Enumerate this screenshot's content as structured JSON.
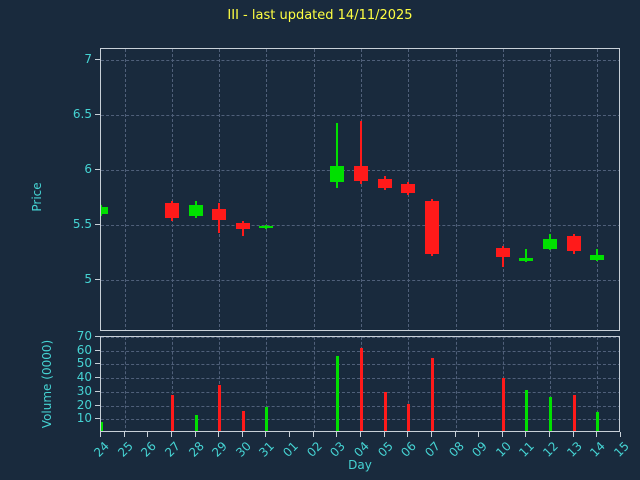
{
  "colors": {
    "background": "#192a3d",
    "up": "#00e000",
    "down": "#ff1a1a",
    "grid": "#50607a",
    "frame": "#c8d0d8",
    "tick_text": "#45d3d3",
    "title_text": "#ffff42"
  },
  "chart_data": {
    "type": "candlestick",
    "title": "III - last updated 14/11/2025",
    "xlabel": "Day",
    "price_axis": {
      "label": "Price",
      "ticks": [
        7,
        6.5,
        6,
        5.5,
        5
      ],
      "range": [
        4.53,
        7.1
      ],
      "grid": true
    },
    "volume_axis": {
      "label": "Volume (0000)",
      "ticks": [
        70,
        60,
        50,
        40,
        30,
        20,
        10
      ],
      "range": [
        0,
        70
      ],
      "grid": true
    },
    "days": [
      "24",
      "25",
      "26",
      "27",
      "28",
      "29",
      "30",
      "31",
      "01",
      "02",
      "03",
      "04",
      "05",
      "06",
      "07",
      "08",
      "09",
      "10",
      "11",
      "12",
      "13",
      "14",
      "15"
    ],
    "candles": [
      {
        "day": "24",
        "open": 5.6,
        "close": 5.66,
        "high": 5.68,
        "low": 5.58,
        "color": "up",
        "volume": 8
      },
      {
        "day": "27",
        "open": 5.7,
        "close": 5.56,
        "high": 5.72,
        "low": 5.54,
        "color": "down",
        "volume": 28
      },
      {
        "day": "28",
        "open": 5.58,
        "close": 5.68,
        "high": 5.72,
        "low": 5.56,
        "color": "up",
        "volume": 13
      },
      {
        "day": "29",
        "open": 5.65,
        "close": 5.55,
        "high": 5.7,
        "low": 5.43,
        "color": "down",
        "volume": 35
      },
      {
        "day": "30",
        "open": 5.52,
        "close": 5.46,
        "high": 5.54,
        "low": 5.4,
        "color": "down",
        "volume": 16
      },
      {
        "day": "31",
        "open": 5.47,
        "close": 5.49,
        "high": 5.5,
        "low": 5.46,
        "color": "up",
        "volume": 19
      },
      {
        "day": "03",
        "open": 5.89,
        "close": 6.04,
        "high": 6.43,
        "low": 5.84,
        "color": "up",
        "volume": 56
      },
      {
        "day": "04",
        "open": 6.04,
        "close": 5.9,
        "high": 6.45,
        "low": 5.87,
        "color": "down",
        "volume": 62
      },
      {
        "day": "05",
        "open": 5.92,
        "close": 5.84,
        "high": 5.95,
        "low": 5.82,
        "color": "down",
        "volume": 30
      },
      {
        "day": "06",
        "open": 5.87,
        "close": 5.79,
        "high": 5.89,
        "low": 5.77,
        "color": "down",
        "volume": 21
      },
      {
        "day": "07",
        "open": 5.72,
        "close": 5.24,
        "high": 5.74,
        "low": 5.22,
        "color": "down",
        "volume": 55
      },
      {
        "day": "10",
        "open": 5.29,
        "close": 5.21,
        "high": 5.31,
        "low": 5.12,
        "color": "down",
        "volume": 40
      },
      {
        "day": "11",
        "open": 5.17,
        "close": 5.2,
        "high": 5.28,
        "low": 5.16,
        "color": "up",
        "volume": 31
      },
      {
        "day": "12",
        "open": 5.28,
        "close": 5.37,
        "high": 5.42,
        "low": 5.27,
        "color": "up",
        "volume": 26
      },
      {
        "day": "13",
        "open": 5.4,
        "close": 5.26,
        "high": 5.42,
        "low": 5.24,
        "color": "down",
        "volume": 28
      },
      {
        "day": "14",
        "open": 5.18,
        "close": 5.23,
        "high": 5.28,
        "low": 5.17,
        "color": "up",
        "volume": 15
      }
    ]
  }
}
